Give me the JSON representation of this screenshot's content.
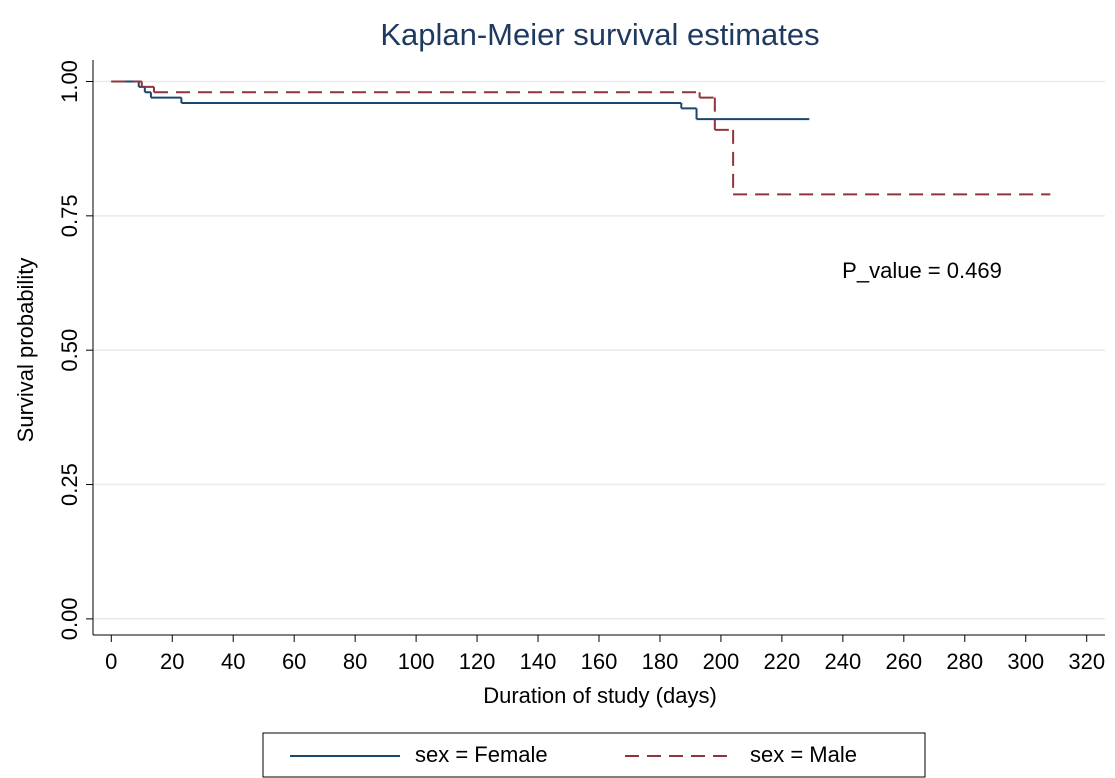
{
  "chart_data": {
    "type": "step",
    "title": "Kaplan-Meier survival estimates",
    "xlabel": "Duration of study (days)",
    "ylabel": "Survival probability",
    "annotation": "P_value = 0.469",
    "series": [
      {
        "name": "sex = Female",
        "color": "#1a476f",
        "dash": "solid",
        "x": [
          0,
          9,
          11,
          13,
          23,
          187,
          192,
          229
        ],
        "values": [
          1,
          0.99,
          0.98,
          0.97,
          0.96,
          0.95,
          0.93,
          0.93
        ]
      },
      {
        "name": "sex = Male",
        "color": "#90353b",
        "dash": "dashed",
        "x": [
          0,
          10,
          14,
          193,
          198,
          204,
          308
        ],
        "values": [
          1,
          0.99,
          0.98,
          0.97,
          0.91,
          0.79,
          0.79
        ]
      }
    ],
    "xlim": [
      -6,
      326
    ],
    "ylim": [
      -0.03,
      1.04
    ],
    "xticks": [
      0,
      20,
      40,
      60,
      80,
      100,
      120,
      140,
      160,
      180,
      200,
      220,
      240,
      260,
      280,
      300,
      320
    ],
    "yticks": [
      {
        "value": 0,
        "label": "0.00"
      },
      {
        "value": 0.25,
        "label": "0.25"
      },
      {
        "value": 0.5,
        "label": "0.50"
      },
      {
        "value": 0.75,
        "label": "0.75"
      },
      {
        "value": 1,
        "label": "1.00"
      }
    ],
    "grid": true,
    "legend": "bottom"
  }
}
